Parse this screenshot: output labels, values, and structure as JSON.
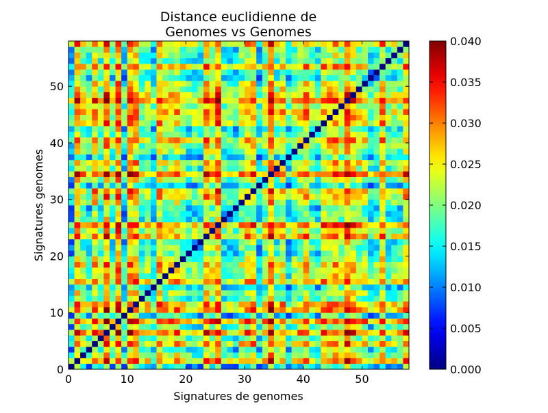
{
  "chart_data": {
    "type": "heatmap",
    "title": "Distance euclidienne de\nGenomes vs Genomes",
    "title_lines": [
      "Distance euclidienne de",
      "Genomes vs Genomes"
    ],
    "xlabel": "Signatures de genomes",
    "ylabel": "Signatures genomes",
    "xlim": [
      0,
      58
    ],
    "ylim": [
      0,
      58
    ],
    "x_ticks": [
      0,
      10,
      20,
      30,
      40,
      50
    ],
    "y_ticks": [
      0,
      10,
      20,
      30,
      40,
      50
    ],
    "n": 58,
    "diagonal_value": 0.0,
    "typical_value_range": [
      0.007,
      0.04
    ],
    "colorbar": {
      "colormap": "jet",
      "vmin": 0.0,
      "vmax": 0.04,
      "ticks": [
        "0.000",
        "0.005",
        "0.010",
        "0.015",
        "0.020",
        "0.025",
        "0.030",
        "0.035",
        "0.040"
      ]
    },
    "grid": false,
    "colorbar_placement": "right"
  }
}
